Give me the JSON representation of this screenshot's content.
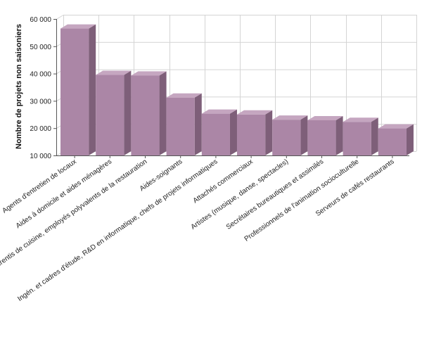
{
  "chart_data": {
    "type": "bar",
    "title": "",
    "xlabel": "",
    "ylabel": "Nombre de projets non saisoniers",
    "ylim": [
      10000,
      60000
    ],
    "yticks": [
      10000,
      20000,
      30000,
      40000,
      50000,
      60000
    ],
    "ytick_labels": [
      "10 000",
      "20 000",
      "30 000",
      "40 000",
      "50 000",
      "60 000"
    ],
    "grid": true,
    "legend": "none",
    "categories": [
      "Agents d'entretien de locaux",
      "Aides à domicile et aides ménagères",
      "Apprentis de cuisine, employés polyvalents de la restauration",
      "Aides-soignants",
      "Ingén. et cadres d'étude, R&D en informatique, chefs de projets informatiques",
      "Attachés commerciaux",
      "Artistes (musique, danse, spectacles)",
      "Secrétaires bureautiques et assimilés",
      "Professionnels de l'animation socioculturelle",
      "Serveurs de cafés restaurants"
    ],
    "series": [
      {
        "values": [
          56500,
          39500,
          39300,
          31200,
          25300,
          25000,
          23100,
          22900,
          22300,
          19900
        ]
      }
    ],
    "colors": {
      "bar_front": "#ab86a6",
      "bar_top": "#c5a6c0",
      "bar_side": "#7e5f79",
      "grid": "#d4d4d4"
    }
  }
}
